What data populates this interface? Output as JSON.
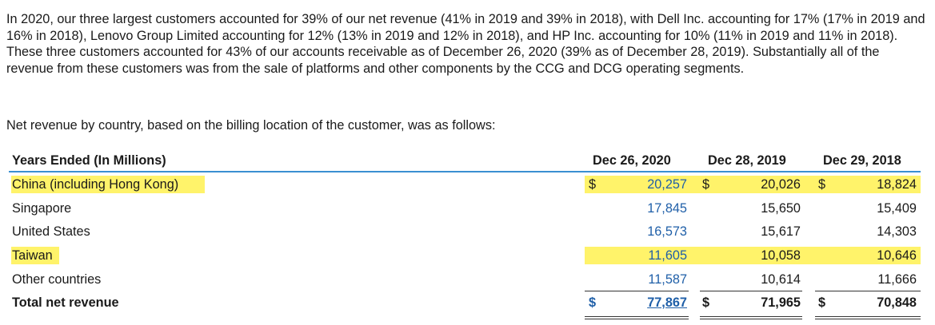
{
  "paragraph": "In 2020, our three largest customers accounted for 39% of our net revenue (41% in 2019 and 39% in 2018), with Dell Inc. accounting for 17% (17% in 2019 and 16% in 2018), Lenovo Group Limited accounting for 12% (13% in 2019 and 12% in 2018), and HP Inc. accounting for 10% (11% in 2019 and 11% in 2018). These three customers accounted for 43% of our accounts receivable as of December 26, 2020 (39% as of December 28, 2019). Substantially all of the revenue from these customers was from the sale of platforms and other components by the CCG and DCG operating segments.",
  "intro": "Net revenue by country, based on the billing location of the customer, was as follows:",
  "table": {
    "header": {
      "label": "Years Ended (In Millions)",
      "col1": "Dec 26, 2020",
      "col2": "Dec 28, 2019",
      "col3": "Dec 29, 2018"
    },
    "currency_symbol": "$",
    "rows": [
      {
        "label": "China (including Hong Kong)",
        "v1": "20,257",
        "v2": "20,026",
        "v3": "18,824"
      },
      {
        "label": "Singapore",
        "v1": "17,845",
        "v2": "15,650",
        "v3": "15,409"
      },
      {
        "label": "United States",
        "v1": "16,573",
        "v2": "15,617",
        "v3": "14,303"
      },
      {
        "label": "Taiwan",
        "v1": "11,605",
        "v2": "10,058",
        "v3": "10,646"
      },
      {
        "label": "Other countries",
        "v1": "11,587",
        "v2": "10,614",
        "v3": "11,666"
      },
      {
        "label": "Total net revenue",
        "v1": "77,867",
        "v2": "71,965",
        "v3": "70,848"
      }
    ]
  },
  "colors": {
    "highlight": "#fff36a",
    "link_blue": "#1f5fa8",
    "rule_blue": "#3a8fd1"
  }
}
